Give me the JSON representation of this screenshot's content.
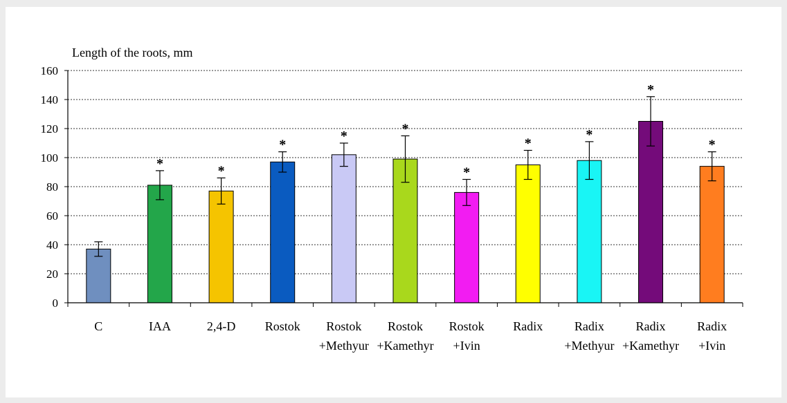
{
  "chart_data": {
    "type": "bar",
    "ylabel": "Length of the roots, mm",
    "xlabel": "",
    "ylim": [
      0,
      160
    ],
    "yticks": [
      0,
      20,
      40,
      60,
      80,
      100,
      120,
      140,
      160
    ],
    "grid": "horizontal-dotted",
    "categories": [
      [
        "C"
      ],
      [
        "IAA"
      ],
      [
        "2,4-D"
      ],
      [
        "Rostok"
      ],
      [
        "Rostok",
        "+Methyur"
      ],
      [
        "Rostok",
        "+Kamethyr"
      ],
      [
        "Rostok",
        "+Ivin"
      ],
      [
        "Radix"
      ],
      [
        "Radix",
        "+Methyur"
      ],
      [
        "Radix",
        "+Kamethyr"
      ],
      [
        "Radix",
        "+Ivin"
      ]
    ],
    "values": [
      37,
      81,
      77,
      97,
      102,
      99,
      76,
      95,
      98,
      125,
      94
    ],
    "errors": [
      5,
      10,
      9,
      7,
      8,
      16,
      9,
      10,
      13,
      17,
      10
    ],
    "significant": [
      false,
      true,
      true,
      true,
      true,
      true,
      true,
      true,
      true,
      true,
      true
    ],
    "significance_marker": "*",
    "colors": [
      "#6f8fbf",
      "#23a64a",
      "#f5c400",
      "#0a5bc0",
      "#c9c9f5",
      "#a9d81c",
      "#f21cf2",
      "#ffff00",
      "#19f5f5",
      "#740b7a",
      "#ff7d1f"
    ]
  }
}
